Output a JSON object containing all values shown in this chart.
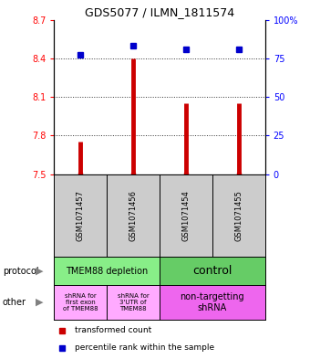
{
  "title": "GDS5077 / ILMN_1811574",
  "samples": [
    "GSM1071457",
    "GSM1071456",
    "GSM1071454",
    "GSM1071455"
  ],
  "transformed_counts": [
    7.75,
    8.4,
    8.05,
    8.05
  ],
  "percentile_ranks": [
    77,
    83,
    81,
    81
  ],
  "y_min": 7.5,
  "y_max": 8.7,
  "y_ticks_left": [
    7.5,
    7.8,
    8.1,
    8.4,
    8.7
  ],
  "y_ticks_right": [
    0,
    25,
    50,
    75,
    100
  ],
  "bar_bottom": 7.5,
  "bar_color": "#cc0000",
  "dot_color": "#0000cc",
  "sample_box_color": "#cccccc",
  "protocol_regions": [
    {
      "cols": [
        0,
        2
      ],
      "color": "#88ee88",
      "label": "TMEM88 depletion",
      "fontsize": 7
    },
    {
      "cols": [
        2,
        4
      ],
      "color": "#66cc66",
      "label": "control",
      "fontsize": 9
    }
  ],
  "other_regions": [
    {
      "cols": [
        0,
        1
      ],
      "color": "#ffaaff",
      "label": "shRNA for\nfirst exon\nof TMEM88",
      "fontsize": 5
    },
    {
      "cols": [
        1,
        2
      ],
      "color": "#ffaaff",
      "label": "shRNA for\n3'UTR of\nTMEM88",
      "fontsize": 5
    },
    {
      "cols": [
        2,
        4
      ],
      "color": "#ee66ee",
      "label": "non-targetting\nshRNA",
      "fontsize": 7
    }
  ],
  "left_labels": [
    "protocol",
    "other"
  ],
  "legend_items": [
    {
      "color": "#cc0000",
      "label": "transformed count"
    },
    {
      "color": "#0000cc",
      "label": "percentile rank within the sample"
    }
  ],
  "title_fontsize": 9,
  "sample_fontsize": 6,
  "tick_fontsize": 7
}
